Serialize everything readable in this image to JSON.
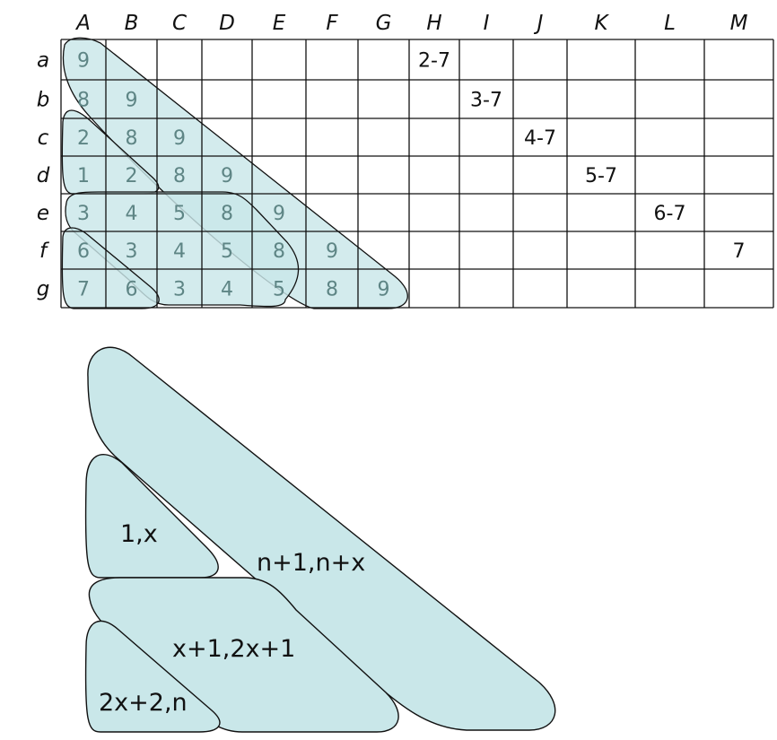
{
  "grid": {
    "columns": [
      "A",
      "B",
      "C",
      "D",
      "E",
      "F",
      "G",
      "H",
      "I",
      "J",
      "K",
      "L",
      "M"
    ],
    "rows": [
      "a",
      "b",
      "c",
      "d",
      "e",
      "f",
      "g"
    ],
    "cells": [
      [
        "9",
        "",
        "",
        "",
        "",
        "",
        "",
        "2-7",
        "",
        "",
        "",
        "",
        ""
      ],
      [
        "8",
        "9",
        "",
        "",
        "",
        "",
        "",
        "",
        "3-7",
        "",
        "",
        "",
        ""
      ],
      [
        "2",
        "8",
        "9",
        "",
        "",
        "",
        "",
        "",
        "",
        "4-7",
        "",
        "",
        ""
      ],
      [
        "1",
        "2",
        "8",
        "9",
        "",
        "",
        "",
        "",
        "",
        "",
        "5-7",
        "",
        ""
      ],
      [
        "3",
        "4",
        "5",
        "8",
        "9",
        "",
        "",
        "",
        "",
        "",
        "",
        "6-7",
        ""
      ],
      [
        "6",
        "3",
        "4",
        "5",
        "8",
        "9",
        "",
        "",
        "",
        "",
        "",
        "",
        "7"
      ],
      [
        "7",
        "6",
        "3",
        "4",
        "5",
        "8",
        "9",
        "",
        "",
        "",
        "",
        "",
        ""
      ]
    ]
  },
  "regions": {
    "large": "n+1,n+x",
    "small_top": "1,x",
    "middle": "x+1,2x+1",
    "small_bottom": "2x+2,n"
  },
  "colors": {
    "region_fill": "#c9e7e9",
    "outline": "#111111",
    "shaded_text": "#5e8585"
  }
}
